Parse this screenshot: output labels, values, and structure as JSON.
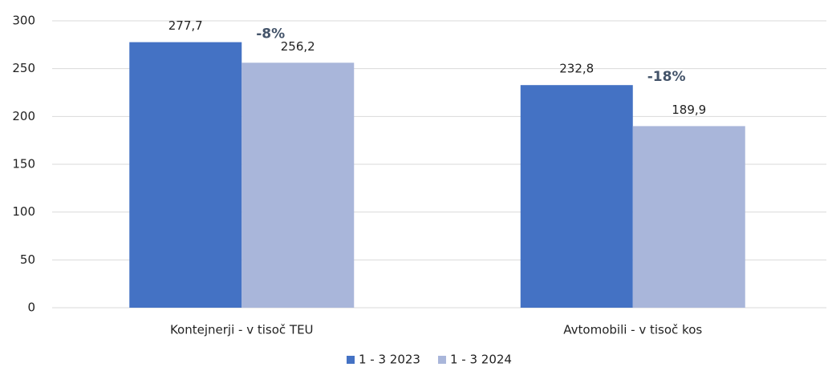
{
  "chart_data": {
    "type": "bar",
    "categories": [
      "Kontejnerji - v tisoč TEU",
      "Avtomobili - v tisoč kos"
    ],
    "series": [
      {
        "name": "1 - 3 2023",
        "color": "#4472c4",
        "values": [
          277.7,
          232.8
        ],
        "value_labels": [
          "277,7",
          "232,8"
        ]
      },
      {
        "name": "1 - 3 2024",
        "color": "#a9b6da",
        "values": [
          256.2,
          189.9
        ],
        "value_labels": [
          "256,2",
          "189,9"
        ]
      }
    ],
    "annotations": [
      "-8%",
      "-18%"
    ],
    "ylim": [
      0,
      300
    ],
    "yticks": [
      0,
      50,
      100,
      150,
      200,
      250,
      300
    ],
    "grid": true,
    "legend": "bottom"
  }
}
